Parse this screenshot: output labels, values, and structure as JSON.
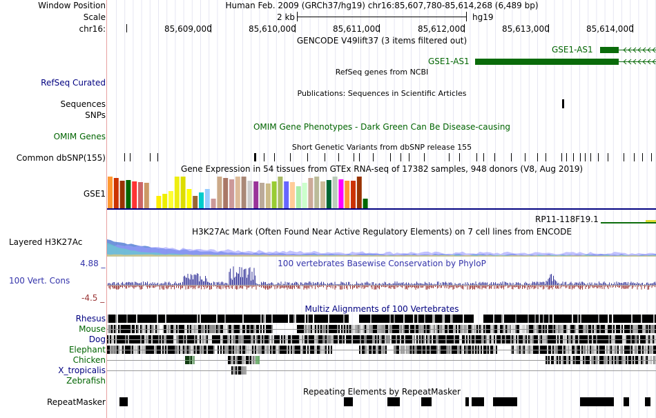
{
  "header": {
    "window_position_label": "Window Position",
    "scale_label": "Scale",
    "chrom_label": "chr16:",
    "position_text": "Human Feb. 2009 (GRCh37/hg19)   chr16:85,607,780-85,614,268 (6,489 bp)",
    "scale_text": "2 kb",
    "assembly": "hg19",
    "ticks": [
      "85,609,000",
      "85,610,000",
      "85,611,000",
      "85,612,000",
      "85,613,000",
      "85,614,000"
    ]
  },
  "tracks": {
    "gencode": {
      "title": "GENCODE V49lift37 (3 items filtered out)",
      "genes": [
        "GSE1-AS1",
        "GSE1-AS1"
      ]
    },
    "refseq": {
      "label": "RefSeq Curated",
      "title": "RefSeq genes from NCBI"
    },
    "publications": {
      "title": "Publications: Sequences in Scientific Articles",
      "labels": [
        "Sequences",
        "SNPs"
      ]
    },
    "omim": {
      "label": "OMIM Genes",
      "title": "OMIM Gene Phenotypes - Dark Green Can Be Disease-causing"
    },
    "dbsnp": {
      "label": "Common dbSNP(155)",
      "title": "Short Genetic Variants from dbSNP release 155"
    },
    "gtex": {
      "title": "Gene Expression in 54 tissues from GTEx RNA-seq of 17382 samples, 948 donors (V8, Aug 2019)",
      "gene_label": "GSE1",
      "next_gene": "RP11-118F19.1"
    },
    "h3k27ac": {
      "label": "Layered H3K27Ac",
      "title": "H3K27Ac Mark (Often Found Near Active Regulatory Elements) on 7 cell lines from ENCODE"
    },
    "phylop": {
      "label": "100 Vert. Cons",
      "title": "100 vertebrates Basewise Conservation by PhyloP",
      "max": "4.88 _",
      "min": "-4.5 _"
    },
    "multiz": {
      "title": "Multiz Alignments of 100 Vertebrates",
      "species": [
        "Rhesus",
        "Mouse",
        "Dog",
        "Elephant",
        "Chicken",
        "X_tropicalis",
        "Zebrafish"
      ]
    },
    "repeatmasker": {
      "label": "RepeatMasker",
      "title": "Repeating Elements by RepeatMasker"
    }
  },
  "colors": {
    "gene_green": "#0a6b0a",
    "omim_green": "#006400",
    "navy": "#000080",
    "phylop_pos": "#333399",
    "phylop_neg": "#993333",
    "gtex_bars": [
      "#ff9933",
      "#cc3300",
      "#993300",
      "#006600",
      "#ff3333",
      "#cc6666",
      "#cc9966",
      "#ffffff",
      "#ffee00",
      "#eeee00",
      "#ffff33",
      "#eeee11",
      "#dddd00",
      "#ffff00",
      "#996633",
      "#00cccc",
      "#99ccff",
      "#cc9999",
      "#ccaa88",
      "#aa7766",
      "#cc9999",
      "#ddbb99",
      "#aa8877",
      "#cccccc",
      "#993399",
      "#bbaa99",
      "#ccbb88",
      "#99cc33",
      "#aabb66",
      "#6666ff",
      "#ffcc99",
      "#aaeeaa",
      "#ccffcc",
      "#ccaa99",
      "#bbbb99",
      "#ccbb99",
      "#006633",
      "#bbccbb",
      "#ff00ff"
    ]
  },
  "gtex_values": [
    100,
    95,
    88,
    90,
    85,
    82,
    80,
    78,
    40,
    45,
    55,
    100,
    100,
    60,
    40,
    50,
    60,
    30,
    100,
    95,
    92,
    100,
    100,
    88,
    85,
    80,
    78,
    85,
    100,
    85,
    82,
    70,
    80,
    95,
    100,
    85,
    90,
    100,
    92,
    86,
    88,
    100,
    30
  ]
}
